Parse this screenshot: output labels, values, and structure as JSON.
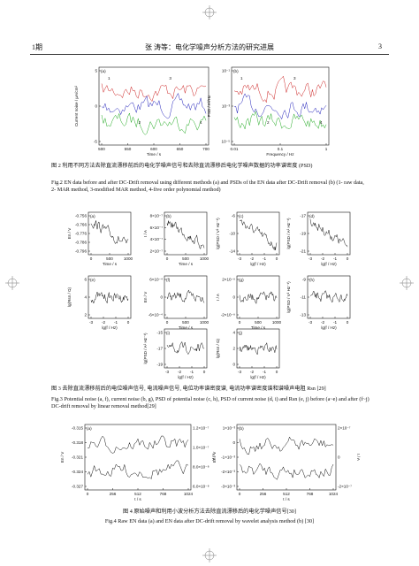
{
  "header": {
    "issue": "1期",
    "title": "张 涛等：电化学噪声分析方法的研究进展",
    "page": "3"
  },
  "figures": [
    {
      "caption_cn": "图 2 利用不同方法去除直流漂移前后的电化学噪声信号和去除直流漂移后电化学噪声数据的功率谱密度 (PSD)",
      "caption_en": "Fig.2 EN data before and after DC-Drift removal using different methods (a) and PSDs of the EN data after DC-Drift removal (b) (1- raw data, 2- MAR method, 3-modified MAR method, 4-five order polynomial method)",
      "panels": [
        {
          "label": "(a)",
          "xlabel": "Time / s",
          "ylabel": "Current noise / μA/cm²",
          "xticks": [
            "500",
            "550",
            "600",
            "650",
            "700"
          ],
          "yticks": [
            "5",
            "0",
            "-5"
          ],
          "notes": [
            "1",
            "2",
            "3",
            "4"
          ]
        },
        {
          "label": "(b)",
          "xlabel": "Frequency / Hz",
          "ylabel": "PSD / A²/Hz",
          "xticks": [
            "0.01",
            "0.1",
            "1"
          ],
          "yticks": [
            "10⁻¹",
            "10⁻³",
            "10⁻⁵"
          ],
          "notes": [
            "1",
            "2",
            "3",
            "4"
          ]
        }
      ]
    },
    {
      "caption_cn": "图 3 去除直流漂移前后的电位噪声信号, 电流噪声信号, 电位功率谱密度谱, 电流功率谱密度谱和谱噪声电阻 Rsn [29]",
      "caption_en": "Fig.3 Potential noise (a, f), current noise (b, g), PSD of potential noise (c, h), PSD of current noise (d, i) and Rsn (e, j) before (a~e) and after (f~j) DC-drift removal by linear removal method[29]",
      "panels": [
        {
          "label": "(a)",
          "xlabel": "Time / s",
          "ylabel": "En / V",
          "xticks": [
            "0",
            "500",
            "1000"
          ],
          "yticks": [
            "-0.756",
            "-0.766",
            "-0.776",
            "-0.786",
            "-0.796"
          ]
        },
        {
          "label": "(b)",
          "xlabel": "Time / s",
          "ylabel": "I / A",
          "xticks": [
            "0",
            "500",
            "1000"
          ],
          "yticks": [
            "8×10⁻⁷",
            "6×10⁻⁷",
            "4×10⁻⁷",
            "2×10⁻⁷"
          ]
        },
        {
          "label": "(c)",
          "xlabel": "lg(f / Hz)",
          "ylabel": "lg(PSD / V² Hz⁻¹)",
          "xticks": [
            "-3",
            "-2",
            "-1",
            "0"
          ],
          "yticks": [
            "-6",
            "-10",
            "-14"
          ]
        },
        {
          "label": "(d)",
          "xlabel": "lg(f / Hz)",
          "ylabel": "lg(PSD / A² Hz⁻¹)",
          "xticks": [
            "-3",
            "-2",
            "-1",
            "0"
          ],
          "yticks": [
            "-17",
            "-19",
            "-21"
          ]
        },
        {
          "label": "(e)",
          "xlabel": "lg(f / Hz)",
          "ylabel": "lg(Rsn / Ω)",
          "xticks": [
            "-3",
            "-2",
            "-1",
            "0"
          ],
          "yticks": [
            "6",
            "4",
            "2"
          ]
        },
        {
          "label": "(f)",
          "xlabel": "Time / s",
          "ylabel": "En / V",
          "xticks": [
            "0",
            "500",
            "1000"
          ],
          "yticks": [
            "6×10⁻⁴",
            "0",
            "-6×10⁻⁴"
          ]
        },
        {
          "label": "(g)",
          "xlabel": "Time / s",
          "ylabel": "I / A",
          "xticks": [
            "0",
            "500",
            "1000"
          ],
          "yticks": [
            "2×10⁻⁹",
            "0",
            "-2×10⁻⁹"
          ]
        },
        {
          "label": "(h)",
          "xlabel": "lg(f / Hz)",
          "ylabel": "lg(PSD / V² Hz⁻¹)",
          "xticks": [
            "-3",
            "-2",
            "-1",
            "0"
          ],
          "yticks": [
            "-9",
            "-11",
            "-13"
          ]
        },
        {
          "label": "(i)",
          "xlabel": "lg(f / Hz)",
          "ylabel": "lg(PSD / A² Hz⁻¹)",
          "xticks": [
            "-3",
            "-2",
            "-1",
            "0"
          ],
          "yticks": [
            "-15",
            "-17",
            "-19"
          ]
        },
        {
          "label": "(j)",
          "xlabel": "lg(f / Hz)",
          "ylabel": "lg(Rsn / Ω)",
          "xticks": [
            "-3",
            "-2",
            "-1",
            "0"
          ],
          "yticks": [
            "4",
            "2",
            "0"
          ]
        }
      ]
    },
    {
      "caption_cn": "图 4 原始噪声和利用小波分析方法去除直流漂移后的电化学噪声信号[30]",
      "caption_en": "Fig.4 Raw EN data (a) and EN data after DC-drift removal by wavelet analysis method (b) [30]",
      "panels": [
        {
          "label": "(a)",
          "xlabel": "t / s",
          "ylabel": "En / V",
          "xticks": [
            "0",
            "256",
            "512",
            "768",
            "1024"
          ],
          "yticks": [
            "-0.315",
            "-0.318",
            "-0.321",
            "-0.324",
            "-0.327"
          ],
          "y2label": "I / A",
          "y2ticks": [
            "1.2×10⁻⁷",
            "1.0×10⁻⁷",
            "8.0×10⁻⁸",
            "6.0×10⁻⁸"
          ]
        },
        {
          "label": "(b)",
          "xlabel": "t / s",
          "ylabel": "En / V",
          "xticks": [
            "0",
            "256",
            "512",
            "768",
            "1024"
          ],
          "yticks": [
            "1×10⁻³",
            "0",
            "-1×10⁻³",
            "-2×10⁻³",
            "-3×10⁻³"
          ],
          "y2label": "I / A",
          "y2ticks": [
            "2×10⁻⁷",
            "0",
            "-2×10⁻⁷"
          ]
        }
      ]
    }
  ]
}
